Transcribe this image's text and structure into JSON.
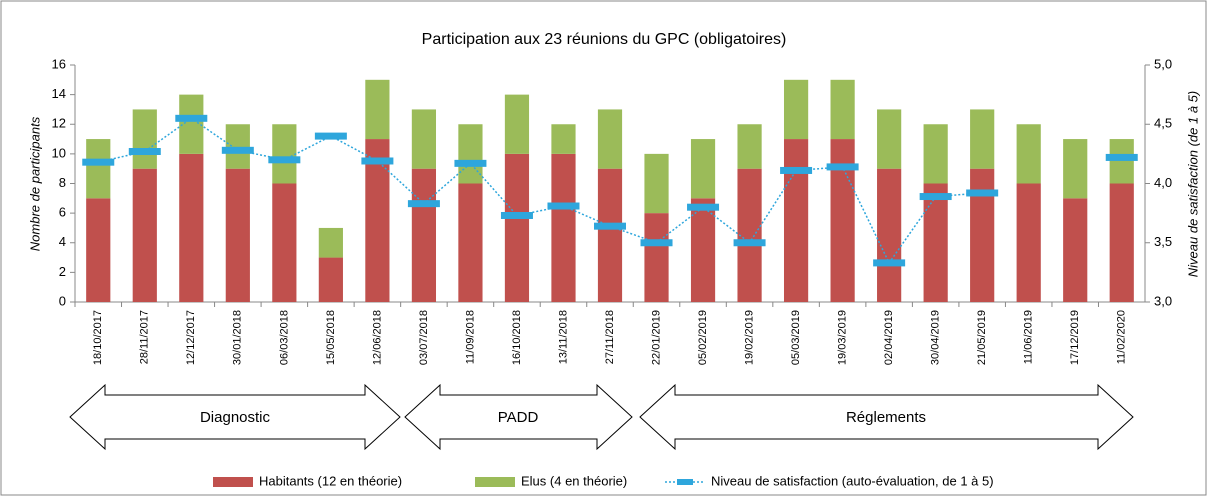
{
  "chart_data": {
    "type": "bar",
    "title": "Participation aux 23 réunions du GPC (obligatoires)",
    "ylabel": "Nombre de participants",
    "y2label": "Niveau de satisfaction (auto-évaluation, de 1 à 5)",
    "y2label_short": "Niveau de satisfaction (de 1 à 5)",
    "stacked": true,
    "categories": [
      "18/10/2017",
      "28/11/2017",
      "12/12/2017",
      "30/01/2018",
      "06/03/2018",
      "15/05/2018",
      "12/06/2018",
      "03/07/2018",
      "11/09/2018",
      "16/10/2018",
      "13/11/2018",
      "27/11/2018",
      "22/01/2019",
      "05/02/2019",
      "19/02/2019",
      "05/03/2019",
      "19/03/2019",
      "02/04/2019",
      "30/04/2019",
      "21/05/2019",
      "11/06/2019",
      "17/12/2019",
      "11/02/2020"
    ],
    "series": [
      {
        "name": "Habitants (12 en théorie)",
        "color": "#c0504d",
        "values": [
          7,
          9,
          10,
          9,
          8,
          3,
          11,
          9,
          8,
          10,
          10,
          9,
          6,
          7,
          9,
          11,
          11,
          9,
          8,
          9,
          8,
          7,
          8
        ]
      },
      {
        "name": "Elus (4 en théorie)",
        "color": "#9bbb59",
        "values": [
          4,
          4,
          4,
          3,
          4,
          2,
          4,
          4,
          4,
          4,
          2,
          4,
          4,
          4,
          3,
          4,
          4,
          4,
          4,
          4,
          4,
          4,
          3
        ]
      },
      {
        "name": "Niveau de satisfaction (auto-évaluation, de 1 à 5)",
        "color": "#2ea6dc",
        "type": "line",
        "axis": "y2",
        "values": [
          4.18,
          4.27,
          4.55,
          4.28,
          4.2,
          4.4,
          4.19,
          3.83,
          4.17,
          3.73,
          3.81,
          3.64,
          3.5,
          3.8,
          3.5,
          4.11,
          4.14,
          3.33,
          3.89,
          3.92,
          null,
          null,
          4.22
        ]
      }
    ],
    "ylim": [
      0,
      16
    ],
    "yticks": [
      0,
      2,
      4,
      6,
      8,
      10,
      12,
      14,
      16
    ],
    "y2lim": [
      3,
      5
    ],
    "y2ticks": [
      {
        "value": 3,
        "label": "3,0"
      },
      {
        "value": 3.5,
        "label": "3,5"
      },
      {
        "value": 4,
        "label": "4,0"
      },
      {
        "value": 4.5,
        "label": "4,5"
      },
      {
        "value": 5,
        "label": "5,0"
      }
    ],
    "annotations": [
      "Diagnostic",
      "PADD",
      "Réglements"
    ],
    "legend": "bottom"
  }
}
